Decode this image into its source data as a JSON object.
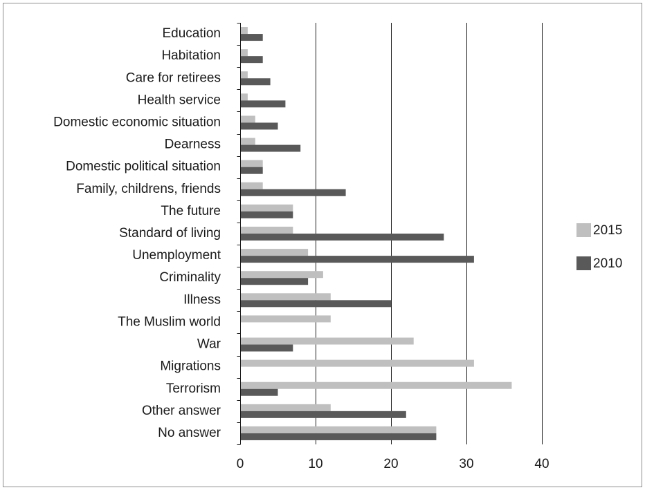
{
  "chart_data": {
    "type": "bar",
    "orientation": "horizontal",
    "categories": [
      "Education",
      "Habitation",
      "Care for retirees",
      "Health service",
      "Domestic economic situation",
      "Dearness",
      "Domestic political situation",
      "Family, childrens, friends",
      "The future",
      "Standard of living",
      "Unemployment",
      "Criminality",
      "Illness",
      "The Muslim world",
      "War",
      "Migrations",
      "Terrorism",
      "Other answer",
      "No answer"
    ],
    "series": [
      {
        "name": "2015",
        "color": "#bfbfbf",
        "values": [
          1,
          1,
          1,
          1,
          2,
          2,
          3,
          3,
          7,
          7,
          9,
          11,
          12,
          12,
          23,
          31,
          36,
          12,
          26
        ]
      },
      {
        "name": "2010",
        "color": "#595959",
        "values": [
          3,
          3,
          4,
          6,
          5,
          8,
          3,
          14,
          7,
          27,
          31,
          9,
          20,
          0,
          7,
          0,
          5,
          22,
          26
        ]
      }
    ],
    "xlim": [
      0,
      40
    ],
    "xticks": [
      "0",
      "10",
      "20",
      "30",
      "40"
    ],
    "grid": "vertical major lines",
    "legend_position": "right",
    "title": "",
    "xlabel": "",
    "ylabel": ""
  }
}
